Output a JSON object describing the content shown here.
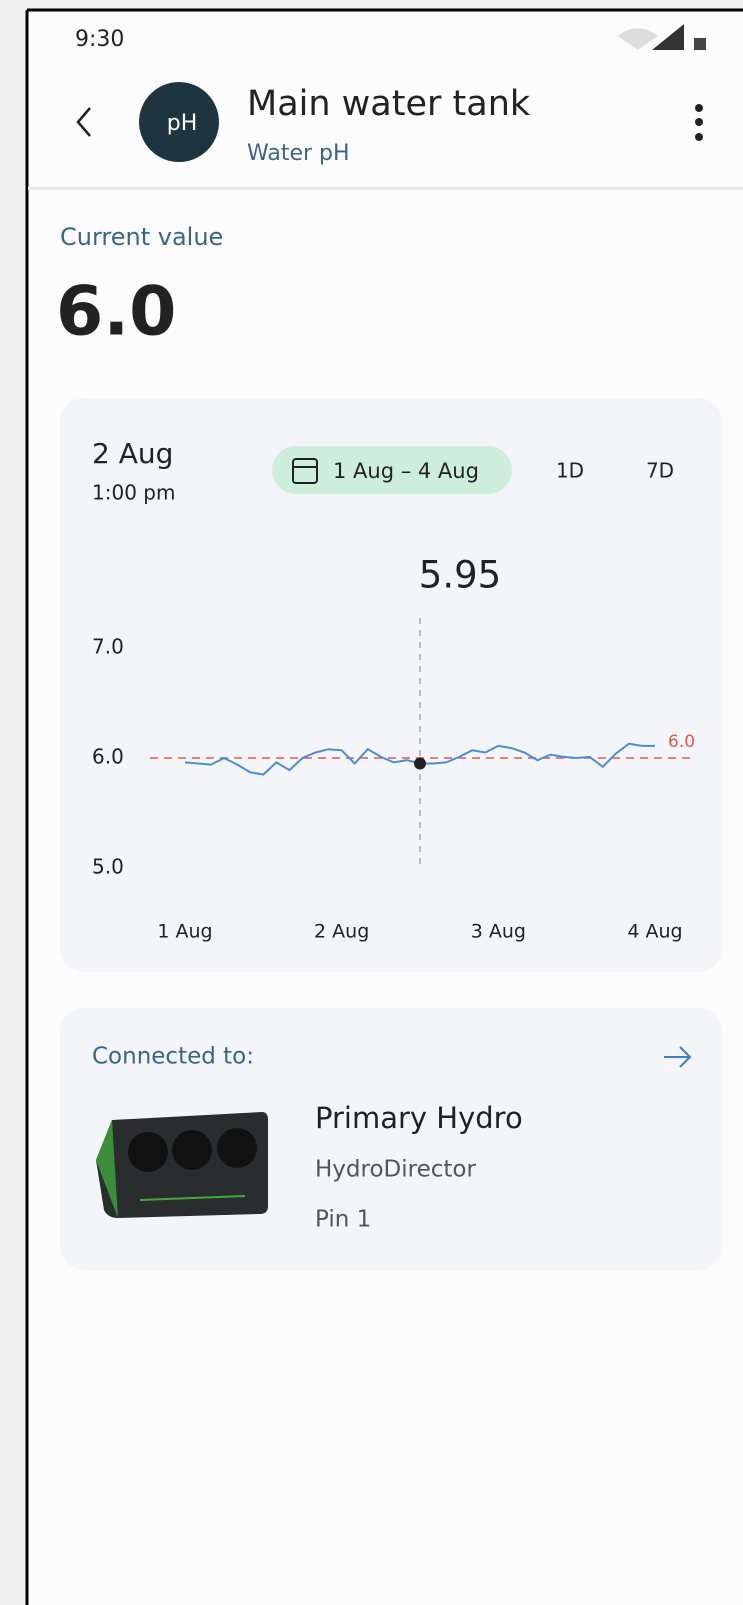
{
  "status_bar": {
    "time": "9:30"
  },
  "header": {
    "icon_label": "pH",
    "title": "Main water tank",
    "subtitle": "Water pH"
  },
  "current": {
    "label": "Current value",
    "value": "6.0"
  },
  "chart_card": {
    "date": "2 Aug",
    "time": "1:00 pm",
    "range_button": "1 Aug – 4 Aug",
    "options": [
      "1D",
      "7D"
    ]
  },
  "chart_data": {
    "type": "line",
    "categories": [
      "1 Aug",
      null,
      null,
      null,
      null,
      null,
      null,
      null,
      null,
      null,
      null,
      null,
      "2 Aug",
      null,
      null,
      null,
      null,
      null,
      null,
      null,
      null,
      null,
      null,
      null,
      "3 Aug",
      null,
      null,
      null,
      null,
      null,
      null,
      null,
      null,
      null,
      null,
      null,
      "4 Aug"
    ],
    "series": [
      {
        "color": "#4a8fd6",
        "values": [
          5.96,
          5.95,
          5.94,
          6.0,
          5.94,
          5.87,
          5.85,
          5.96,
          5.89,
          6.0,
          6.05,
          6.08,
          6.07,
          5.95,
          6.08,
          6.01,
          5.96,
          5.98,
          5.95,
          5.95,
          5.96,
          6.01,
          6.07,
          6.05,
          6.11,
          6.09,
          6.05,
          5.98,
          6.03,
          6.01,
          6.0,
          6.01,
          5.92,
          6.04,
          6.13,
          6.11,
          6.11
        ]
      }
    ],
    "ylim": [
      5,
      7
    ],
    "yticks": [
      {
        "value": 7,
        "label": "7.0"
      },
      {
        "value": 6,
        "label": "6.0"
      },
      {
        "value": 5,
        "label": "5.0"
      }
    ],
    "threshold": {
      "value": 6,
      "label": "6.0",
      "color": "#e05a4f"
    },
    "selected": {
      "index": 18,
      "label": "5.95"
    }
  },
  "connected": {
    "label": "Connected to:",
    "name": "Primary Hydro",
    "model": "HydroDirector",
    "pin": "Pin 1"
  }
}
